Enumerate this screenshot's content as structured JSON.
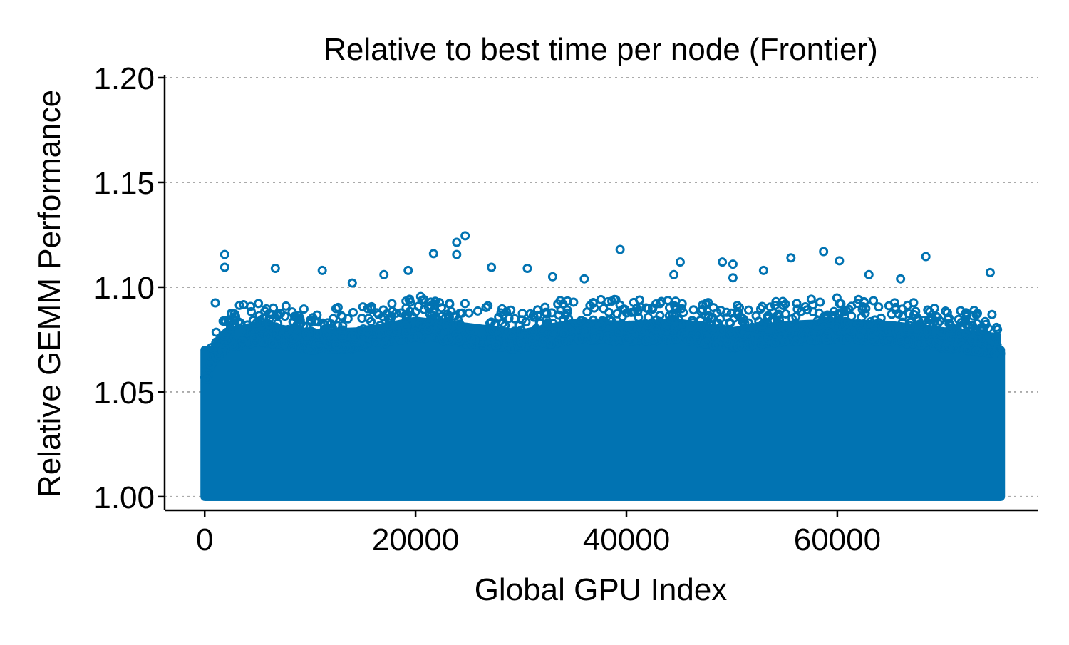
{
  "chart_data": {
    "type": "scatter",
    "title": "Relative to best time per node (Frontier)",
    "xlabel": "Global GPU Index",
    "ylabel": "Relative GEMM Performance",
    "xlim": [
      -3800,
      79000
    ],
    "ylim": [
      0.9935,
      1.2
    ],
    "xticks": [
      0,
      20000,
      40000,
      60000
    ],
    "xtick_labels": [
      "0",
      "20000",
      "40000",
      "60000"
    ],
    "yticks": [
      1.0,
      1.05,
      1.1,
      1.15,
      1.2
    ],
    "ytick_labels": [
      "1.00",
      "1.05",
      "1.10",
      "1.15",
      "1.20"
    ],
    "grid": "horizontal dotted",
    "marker": "open circle",
    "color": "#0173b2",
    "x_extent": [
      0,
      75500
    ],
    "dense_band_upper_envelope": [
      [
        0,
        1.065
      ],
      [
        1000,
        1.078
      ],
      [
        2000,
        1.082
      ],
      [
        5000,
        1.086
      ],
      [
        10000,
        1.082
      ],
      [
        15000,
        1.083
      ],
      [
        20000,
        1.088
      ],
      [
        25000,
        1.085
      ],
      [
        30000,
        1.082
      ],
      [
        35000,
        1.087
      ],
      [
        40000,
        1.086
      ],
      [
        45000,
        1.087
      ],
      [
        50000,
        1.083
      ],
      [
        55000,
        1.086
      ],
      [
        60000,
        1.087
      ],
      [
        65000,
        1.086
      ],
      [
        70000,
        1.083
      ],
      [
        75500,
        1.08
      ]
    ],
    "outliers": [
      [
        1900,
        1.1156
      ],
      [
        1900,
        1.1095
      ],
      [
        1000,
        1.0925
      ],
      [
        6700,
        1.109
      ],
      [
        11150,
        1.108
      ],
      [
        21700,
        1.116
      ],
      [
        23900,
        1.1214
      ],
      [
        24700,
        1.1245
      ],
      [
        23900,
        1.1156
      ],
      [
        27200,
        1.1095
      ],
      [
        30600,
        1.109
      ],
      [
        39400,
        1.118
      ],
      [
        45100,
        1.112
      ],
      [
        44500,
        1.106
      ],
      [
        49100,
        1.112
      ],
      [
        50100,
        1.111
      ],
      [
        50100,
        1.1045
      ],
      [
        55600,
        1.114
      ],
      [
        58700,
        1.117
      ],
      [
        60200,
        1.1126
      ],
      [
        68400,
        1.1146
      ],
      [
        74500,
        1.107
      ],
      [
        14000,
        1.102
      ],
      [
        17000,
        1.106
      ],
      [
        19300,
        1.108
      ],
      [
        33000,
        1.105
      ],
      [
        36000,
        1.104
      ],
      [
        53000,
        1.108
      ],
      [
        63000,
        1.106
      ],
      [
        66000,
        1.104
      ]
    ]
  }
}
